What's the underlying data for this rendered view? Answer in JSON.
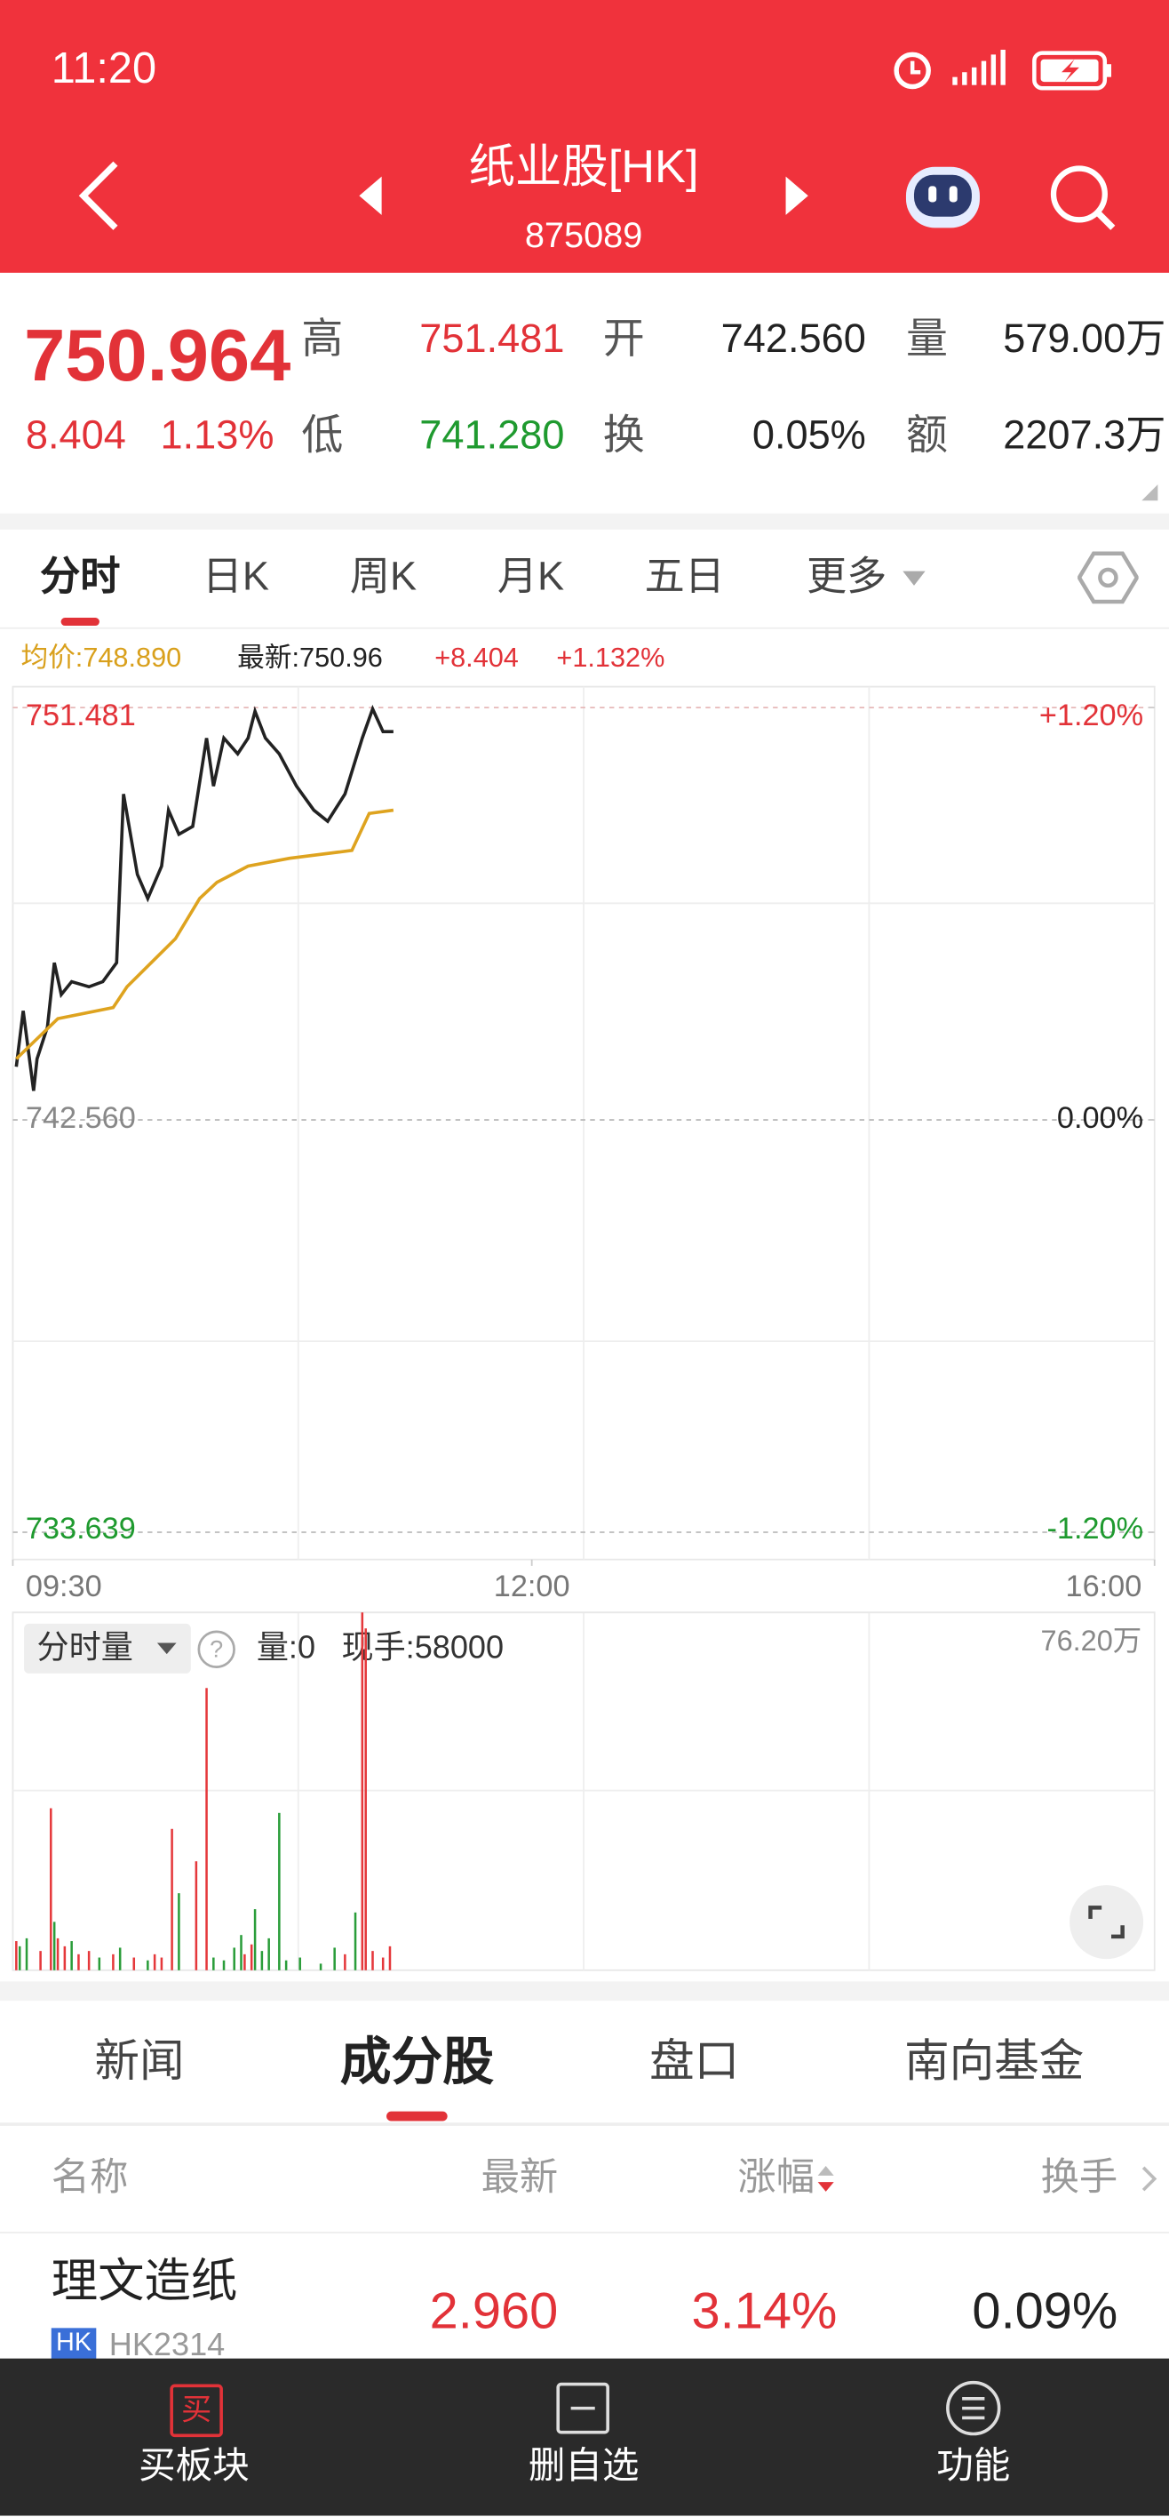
{
  "status": {
    "time": "11:20"
  },
  "header": {
    "title": "纸业股[HK]",
    "code": "875089"
  },
  "quote": {
    "price": "750.964",
    "change": "8.404",
    "change_pct": "1.13%",
    "high_label": "高",
    "high": "751.481",
    "open_label": "开",
    "open": "742.560",
    "volume_label": "量",
    "volume": "579.00万",
    "low_label": "低",
    "low": "741.280",
    "turnover_label": "换",
    "turnover": "0.05%",
    "amount_label": "额",
    "amount": "2207.3万"
  },
  "tabs": [
    "分时",
    "日K",
    "周K",
    "月K",
    "五日",
    "更多"
  ],
  "chart_data": [
    {
      "type": "line",
      "average_label": "均价:748.890",
      "latest_label": "最新:750.96",
      "change_label": "+8.404",
      "change_pct_label": "+1.132%",
      "xlim": [
        0,
        330
      ],
      "xticks": [
        {
          "value": 0,
          "label": "09:30"
        },
        {
          "value": 150,
          "label": "12:00"
        },
        {
          "value": 330,
          "label": "16:00"
        }
      ],
      "ylim": [
        733.639,
        751.481
      ],
      "yticks": [
        751.481,
        {
          "value": 742.56,
          "label": "742.560"
        },
        733.639
      ],
      "y2lim": [
        -1.2,
        1.2
      ],
      "y2ticks": [
        {
          "value": 1.2,
          "label": "+1.20%"
        },
        {
          "value": 0,
          "label": "0.00%"
        },
        {
          "value": -1.2,
          "label": "-1.20%"
        }
      ],
      "series": [
        {
          "color": "#222222",
          "x": [
            1,
            3,
            6,
            7,
            10,
            12,
            14,
            17,
            22,
            26,
            30,
            32,
            36,
            39,
            43,
            45,
            48,
            52,
            56,
            58,
            61,
            65,
            68,
            70,
            73,
            77,
            82,
            87,
            91,
            96,
            101,
            104,
            107,
            110
          ],
          "values": [
            743.71,
            744.92,
            743.19,
            743.88,
            744.57,
            745.96,
            745.27,
            745.55,
            745.44,
            745.55,
            745.96,
            749.61,
            747.87,
            747.35,
            748.05,
            749.26,
            748.74,
            748.91,
            750.82,
            749.78,
            750.82,
            750.48,
            750.82,
            751.4,
            750.82,
            750.48,
            749.78,
            749.26,
            749.02,
            749.61,
            750.82,
            751.45,
            750.96,
            750.96
          ]
        },
        {
          "color": "#dea31f",
          "x": [
            1,
            13,
            29,
            33,
            40,
            47,
            54,
            59,
            68,
            80,
            98,
            103,
            110
          ],
          "values": [
            743.88,
            744.75,
            744.99,
            745.44,
            745.96,
            746.48,
            747.35,
            747.7,
            748.05,
            748.22,
            748.39,
            749.19,
            749.26
          ]
        }
      ]
    },
    {
      "type": "bar",
      "title": "分时量",
      "help": "?",
      "volume_label": "量:0",
      "hand_label": "现手:58000",
      "xlim": [
        0,
        330
      ],
      "ylim": [
        0,
        76.2
      ],
      "yticks": [
        {
          "value": 76.2,
          "label": "76.20万"
        }
      ],
      "series": [
        {
          "x": [
            1,
            2,
            4,
            8,
            11,
            12,
            13,
            15,
            17,
            19,
            22,
            25,
            29,
            31,
            35,
            39,
            41,
            43,
            46,
            48,
            53,
            56,
            58,
            61,
            64,
            66,
            67,
            69,
            70,
            72,
            74,
            77,
            79,
            83,
            89,
            93,
            96,
            99,
            101,
            102,
            104,
            107,
            109
          ],
          "values": [
            6.2,
            5.1,
            6.8,
            4.1,
            34.5,
            10.3,
            6.8,
            5.1,
            6.2,
            3.4,
            4.1,
            2.7,
            3.4,
            4.8,
            2.7,
            2.1,
            3.4,
            2.7,
            30.1,
            16.4,
            23.2,
            60.1,
            2.7,
            2.1,
            4.8,
            7.5,
            3.4,
            5.5,
            13,
            4.1,
            6.8,
            33.5,
            2.1,
            2.7,
            1.4,
            4.8,
            3.4,
            12.3,
            76.2,
            72.8,
            4.1,
            2.7,
            5.1
          ],
          "colors": [
            "#e5383b",
            "#2a9d3a",
            "#2a9d3a",
            "#e5383b",
            "#e5383b",
            "#2a9d3a",
            "#e5383b",
            "#e5383b",
            "#2a9d3a",
            "#e5383b",
            "#e5383b",
            "#2a9d3a",
            "#e5383b",
            "#2a9d3a",
            "#e5383b",
            "#2a9d3a",
            "#e5383b",
            "#e5383b",
            "#e5383b",
            "#2a9d3a",
            "#e5383b",
            "#e5383b",
            "#2a9d3a",
            "#2a9d3a",
            "#2a9d3a",
            "#2a9d3a",
            "#e5383b",
            "#e5383b",
            "#2a9d3a",
            "#2a9d3a",
            "#2a9d3a",
            "#2a9d3a",
            "#2a9d3a",
            "#2a9d3a",
            "#2a9d3a",
            "#2a9d3a",
            "#e5383b",
            "#2a9d3a",
            "#e5383b",
            "#e5383b",
            "#e5383b",
            "#e5383b",
            "#e5383b"
          ]
        }
      ]
    }
  ],
  "sections": [
    "新闻",
    "成分股",
    "盘口",
    "南向基金"
  ],
  "table": {
    "columns": [
      "名称",
      "最新",
      "涨幅",
      "换手"
    ],
    "rows": [
      {
        "name": "理文造纸",
        "market": "HK",
        "code": "HK2314",
        "latest": "2.960",
        "change": "3.14%",
        "turnover": "0.09%"
      }
    ]
  },
  "nav": {
    "buy_icon": "买",
    "items": [
      "买板块",
      "删自选",
      "功能"
    ]
  }
}
